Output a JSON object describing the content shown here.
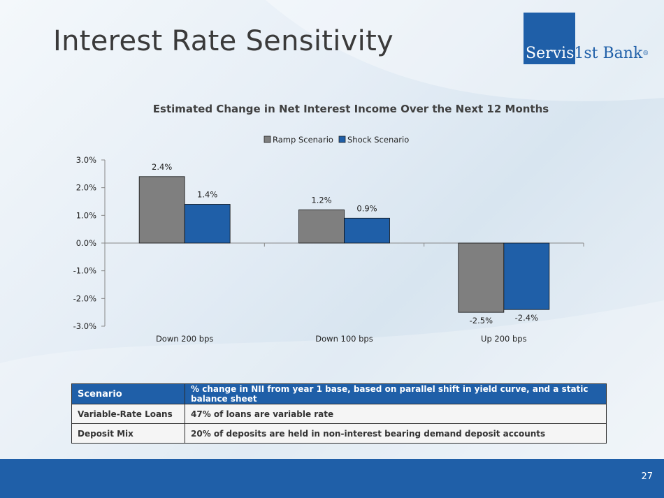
{
  "slide": {
    "title": "Interest Rate Sensitivity",
    "page_number": "27"
  },
  "logo": {
    "word1": "Servis",
    "word2": "1st Bank",
    "mark": "®",
    "color": "#1f5fa8"
  },
  "chart_data": {
    "type": "bar",
    "title": "Estimated Change in Net Interest Income Over the Next 12 Months",
    "categories": [
      "Down 200 bps",
      "Down 100 bps",
      "Up 200 bps"
    ],
    "series": [
      {
        "name": "Ramp Scenario",
        "values": [
          2.4,
          1.2,
          -2.5
        ],
        "labels": [
          "2.4%",
          "1.2%",
          "-2.5%"
        ],
        "color": "#7f7f7f"
      },
      {
        "name": "Shock Scenario",
        "values": [
          1.4,
          0.9,
          -2.4
        ],
        "labels": [
          "1.4%",
          "0.9%",
          "-2.4%"
        ],
        "color": "#1f5fa8"
      }
    ],
    "ylim": [
      -3.0,
      3.0
    ],
    "yticks": [
      3.0,
      2.0,
      1.0,
      0.0,
      -1.0,
      -2.0,
      -3.0
    ],
    "ytick_labels": [
      "3.0%",
      "2.0%",
      "1.0%",
      "0.0%",
      "-1.0%",
      "-2.0%",
      "-3.0%"
    ],
    "xlabel": "",
    "ylabel": "",
    "legend_position": "top-center",
    "grid": false
  },
  "table": {
    "header": {
      "col1": "Scenario",
      "col2": "% change in NII from year 1 base, based on parallel shift in yield curve, and a static balance sheet"
    },
    "rows": [
      {
        "label": "Variable-Rate Loans",
        "value": "47% of loans are variable rate"
      },
      {
        "label": "Deposit Mix",
        "value": "20% of deposits are held in non-interest bearing demand deposit accounts"
      }
    ]
  }
}
